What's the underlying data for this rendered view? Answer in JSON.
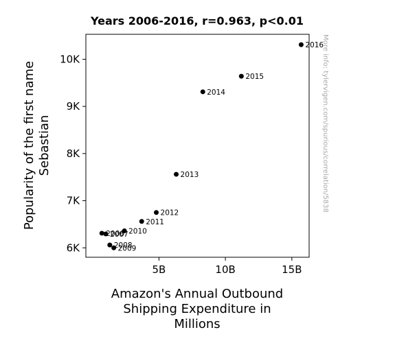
{
  "chart_data": {
    "type": "scatter",
    "title": "Years 2006-2016, r=0.963, p<0.01",
    "xlabel_lines": [
      "Amazon's Annual Outbound",
      "Shipping Expenditure in",
      "Millions"
    ],
    "ylabel_lines": [
      "Popularity of the first name",
      "Sebastian"
    ],
    "watermark": "More info: tylervigen.com/spurious/correlation/5838",
    "xlim": [
      -0.5,
      16.3
    ],
    "ylim": [
      5800,
      10530
    ],
    "xticks": [
      {
        "value": 5,
        "label": "5B"
      },
      {
        "value": 10,
        "label": "10B"
      },
      {
        "value": 15,
        "label": "15B"
      }
    ],
    "yticks": [
      {
        "value": 6000,
        "label": "6K"
      },
      {
        "value": 7000,
        "label": "7K"
      },
      {
        "value": 8000,
        "label": "8K"
      },
      {
        "value": 9000,
        "label": "9K"
      },
      {
        "value": 10000,
        "label": "10K"
      }
    ],
    "points": [
      {
        "label": "2006",
        "x": 0.7,
        "y": 6310
      },
      {
        "label": "2007",
        "x": 1.0,
        "y": 6295
      },
      {
        "label": "2008",
        "x": 1.3,
        "y": 6060
      },
      {
        "label": "2009",
        "x": 1.6,
        "y": 6000
      },
      {
        "label": "2010",
        "x": 2.4,
        "y": 6360
      },
      {
        "label": "2011",
        "x": 3.7,
        "y": 6560
      },
      {
        "label": "2012",
        "x": 4.8,
        "y": 6750
      },
      {
        "label": "2013",
        "x": 6.3,
        "y": 7560
      },
      {
        "label": "2014",
        "x": 8.3,
        "y": 9310
      },
      {
        "label": "2015",
        "x": 11.2,
        "y": 9640
      },
      {
        "label": "2016",
        "x": 15.7,
        "y": 10310
      }
    ],
    "marker_color": "#000000"
  }
}
